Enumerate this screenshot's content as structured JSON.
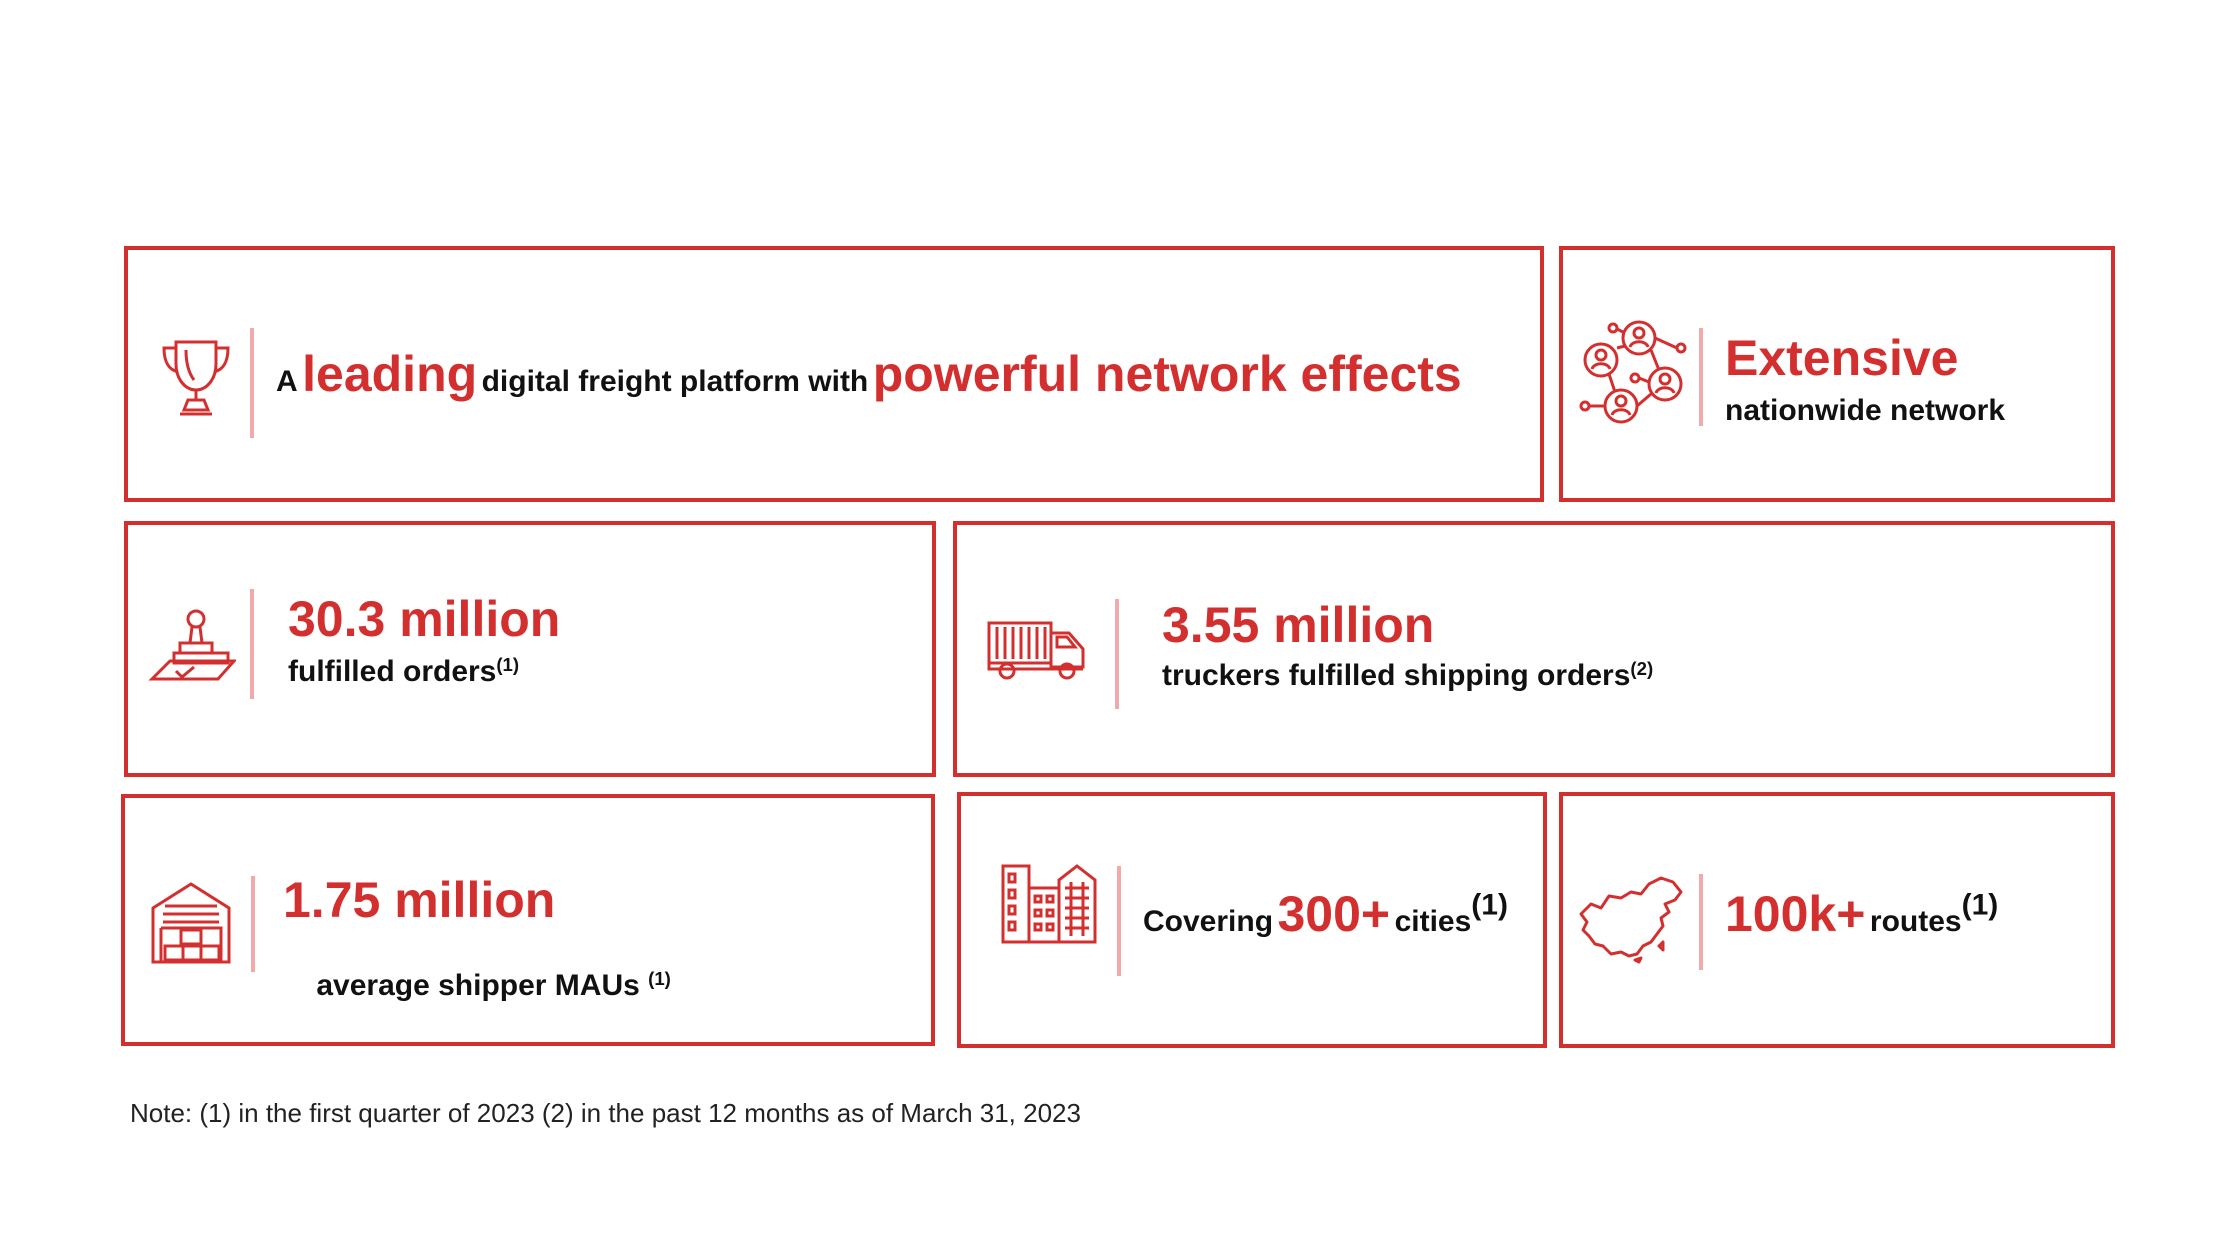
{
  "colors": {
    "accent": "#d32f2f",
    "divider": "#f2a9a9",
    "text": "#111111"
  },
  "cards": {
    "leading": {
      "icon": "trophy-icon",
      "word1": "A",
      "word2": "leading",
      "word3": "digital freight platform with",
      "word4": "powerful network effects"
    },
    "network": {
      "icon": "network-icon",
      "headline": "Extensive",
      "caption": "nationwide network"
    },
    "orders": {
      "icon": "stamp-icon",
      "headline": "30.3 million",
      "caption": "fulfilled orders",
      "note": "(1)"
    },
    "truckers": {
      "icon": "truck-icon",
      "headline": "3.55 million",
      "caption": "truckers fulfilled shipping orders",
      "note": "(2)"
    },
    "shippers": {
      "icon": "warehouse-icon",
      "headline": "1.75 million",
      "caption": "average shipper MAUs ",
      "note": "(1)"
    },
    "cities": {
      "icon": "buildings-icon",
      "prefix": "Covering",
      "value": "300+",
      "suffix": "cities",
      "note": "(1)"
    },
    "routes": {
      "icon": "china-map-icon",
      "value": "100k+",
      "suffix": "routes",
      "note": "(1)"
    }
  },
  "footnote": "Note: (1) in the first quarter of 2023 (2) in the past 12 months as of March 31, 2023"
}
